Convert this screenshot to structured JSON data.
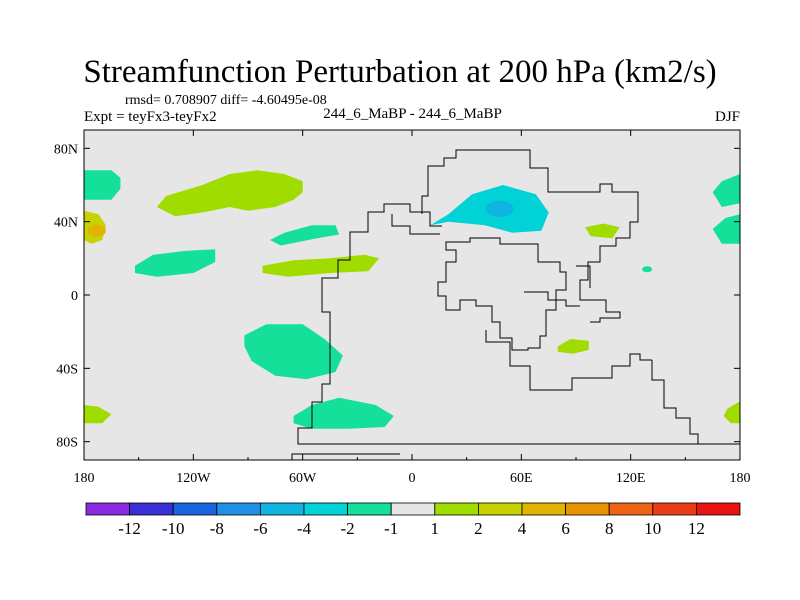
{
  "header": {
    "title": "Streamfunction Perturbation at 200 hPa (km2/s)",
    "stats": "rmsd= 0.708907 diff= -4.60495e-08",
    "expt": "Expt = teyFx3-teyFx2",
    "center": "244_6_MaBP - 244_6_MaBP",
    "season": "DJF"
  },
  "chart_data": {
    "type": "heatmap",
    "title": "Streamfunction Perturbation at 200 hPa (km2/s)",
    "x_ticks": [
      "180",
      "120W",
      "60W",
      "0",
      "60E",
      "120E",
      "180"
    ],
    "x_tick_values": [
      -180,
      -120,
      -60,
      0,
      60,
      120,
      180
    ],
    "y_ticks": [
      "80N",
      "40N",
      "0",
      "40S",
      "80S"
    ],
    "y_tick_values": [
      80,
      40,
      0,
      -40,
      -80
    ],
    "xlim": [
      -180,
      180
    ],
    "ylim": [
      -90,
      90
    ],
    "colorbar": {
      "labels": [
        "-12",
        "-10",
        "-8",
        "-6",
        "-4",
        "-2",
        "-1",
        "1",
        "2",
        "4",
        "6",
        "8",
        "10",
        "12"
      ],
      "colors": [
        "#8a2be2",
        "#3a2ed6",
        "#1a64e0",
        "#1e90e6",
        "#10b4e0",
        "#00d2d6",
        "#14e09a",
        "#e6e6e6",
        "#a0dc00",
        "#c8d200",
        "#e0b400",
        "#e89400",
        "#ec6414",
        "#ec3c14",
        "#e81414"
      ]
    },
    "regions": [
      {
        "label": "2",
        "level": "1 to 2",
        "color": "#a0dc00",
        "lon": -95,
        "lat": 55
      },
      {
        "label": "-1",
        "level": "-2 to -1",
        "color": "#14e09a",
        "lon": -160,
        "lat": 60
      },
      {
        "label": "4",
        "level": "2 to 4",
        "color": "#c8d200",
        "lon": -175,
        "lat": 35
      },
      {
        "label": "-1",
        "level": "-2 to -1",
        "color": "#14e09a",
        "lon": -125,
        "lat": 18
      },
      {
        "label": "-1",
        "level": "-2 to -1",
        "color": "#14e09a",
        "lon": -63,
        "lat": 32
      },
      {
        "label": "2",
        "level": "1 to 2",
        "color": "#a0dc00",
        "lon": -45,
        "lat": 15
      },
      {
        "label": "-2",
        "level": "-4 to -2",
        "color": "#00d2d6",
        "lon": 45,
        "lat": 45
      },
      {
        "label": "-1",
        "level": "-2 to -1",
        "color": "#14e09a",
        "lon": -55,
        "lat": -35
      },
      {
        "label": "-1",
        "level": "-2 to -1",
        "color": "#14e09a",
        "lon": -40,
        "lat": -65
      },
      {
        "label": "2",
        "level": "1 to 2",
        "color": "#a0dc00",
        "lon": 105,
        "lat": 35
      },
      {
        "label": "2",
        "level": "1 to 2",
        "color": "#a0dc00",
        "lon": 90,
        "lat": -28
      },
      {
        "label": "-1",
        "level": "-2 to -1",
        "color": "#14e09a",
        "lon": 172,
        "lat": 58
      },
      {
        "label": "-1",
        "level": "-2 to -1",
        "color": "#14e09a",
        "lon": 172,
        "lat": 35
      },
      {
        "label": "2",
        "level": "1 to 2",
        "color": "#a0dc00",
        "lon": -175,
        "lat": -65
      },
      {
        "label": "2",
        "level": "1 to 2",
        "color": "#a0dc00",
        "lon": 175,
        "lat": -65
      }
    ]
  }
}
